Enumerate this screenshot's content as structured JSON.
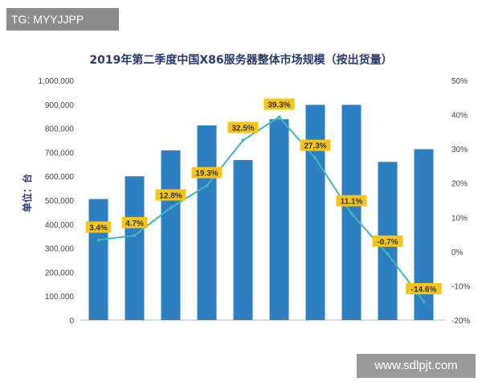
{
  "watermarks": {
    "top": "TG: MYYJJPP",
    "bottom": "www.sdlpjt.com"
  },
  "colors": {
    "bar": "#2e7fc1",
    "line": "#3fb8b5",
    "label_bg": "#f5c518",
    "title": "#2b3a6e"
  },
  "chart_data": {
    "type": "bar",
    "title": "2019年第二季度中国X86服务器整体市场规模（按出货量）",
    "ylabel": "单位：台",
    "categories": [
      "",
      "",
      "",
      "",
      "",
      "",
      "",
      "",
      "",
      ""
    ],
    "ylim": [
      0,
      1000000
    ],
    "y2lim": [
      -20,
      50
    ],
    "yticks": [
      "1,000,000",
      "900,000",
      "800,000",
      "700,000",
      "600,000",
      "500,000",
      "400,000",
      "300,000",
      "200,000",
      "100,000",
      "0"
    ],
    "y2ticks": [
      "50%",
      "40%",
      "30%",
      "20%",
      "10%",
      "0%",
      "-10%",
      "-20%"
    ],
    "series": [
      {
        "type": "bar",
        "axis": "left",
        "values": [
          505000,
          600000,
          708000,
          812000,
          668000,
          838000,
          898000,
          898000,
          660000,
          713000
        ]
      },
      {
        "type": "line",
        "axis": "right",
        "values": [
          3.4,
          4.7,
          12.8,
          19.3,
          32.5,
          39.3,
          27.3,
          11.1,
          -0.7,
          -14.6
        ],
        "labels": [
          "3.4%",
          "4.7%",
          "12.8%",
          "19.3%",
          "32.5%",
          "39.3%",
          "27.3%",
          "11.1%",
          "-0.7%",
          "-14.6%"
        ]
      }
    ],
    "grid": false,
    "legend": "none"
  }
}
